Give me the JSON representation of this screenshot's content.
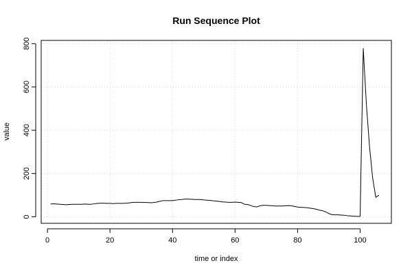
{
  "chart_data": {
    "type": "line",
    "title": "Run Sequence Plot",
    "xlabel": "time or index",
    "ylabel": "value",
    "xlim": [
      -2,
      110
    ],
    "ylim": [
      -30,
      815
    ],
    "x_ticks": [
      0,
      20,
      40,
      60,
      80,
      100
    ],
    "y_ticks": [
      0,
      200,
      400,
      600,
      800
    ],
    "grid": true,
    "legend": "none",
    "line_color": "#000000",
    "grid_color": "#d3d3d3",
    "series": [
      {
        "x": [
          1,
          2,
          3,
          4,
          5,
          6,
          7,
          8,
          9,
          10,
          11,
          12,
          13,
          14,
          15,
          16,
          17,
          18,
          19,
          20,
          21,
          22,
          23,
          24,
          25,
          26,
          27,
          28,
          29,
          30,
          31,
          32,
          33,
          34,
          35,
          36,
          37,
          38,
          39,
          40,
          41,
          42,
          43,
          44,
          45,
          46,
          47,
          48,
          49,
          50,
          51,
          52,
          53,
          54,
          55,
          56,
          57,
          58,
          59,
          60,
          61,
          62,
          63,
          64,
          65,
          66,
          67,
          68,
          69,
          70,
          71,
          72,
          73,
          74,
          75,
          76,
          77,
          78,
          79,
          80,
          81,
          82,
          83,
          84,
          85,
          86,
          87,
          88,
          89,
          90,
          91,
          92,
          93,
          94,
          95,
          96,
          97,
          98,
          99,
          100,
          101,
          102,
          103,
          104,
          105,
          106
        ],
        "values": [
          59,
          60,
          59,
          58,
          57,
          56,
          57,
          58,
          58,
          58,
          58,
          59,
          58,
          58,
          60,
          62,
          63,
          63,
          62,
          62,
          61,
          62,
          62,
          62,
          63,
          64,
          66,
          67,
          67,
          67,
          66,
          66,
          65,
          66,
          68,
          72,
          75,
          75,
          75,
          75,
          77,
          79,
          80,
          82,
          82,
          81,
          80,
          80,
          80,
          78,
          77,
          76,
          74,
          73,
          71,
          69,
          68,
          67,
          67,
          68,
          67,
          66,
          58,
          57,
          52,
          47,
          46,
          51,
          53,
          53,
          52,
          51,
          50,
          50,
          50,
          51,
          52,
          51,
          48,
          45,
          44,
          43,
          42,
          40,
          38,
          35,
          31,
          28,
          23,
          15,
          10,
          9,
          9,
          8,
          7,
          5,
          4,
          3,
          2,
          2,
          778,
          520,
          325,
          180,
          90,
          100
        ]
      }
    ]
  }
}
